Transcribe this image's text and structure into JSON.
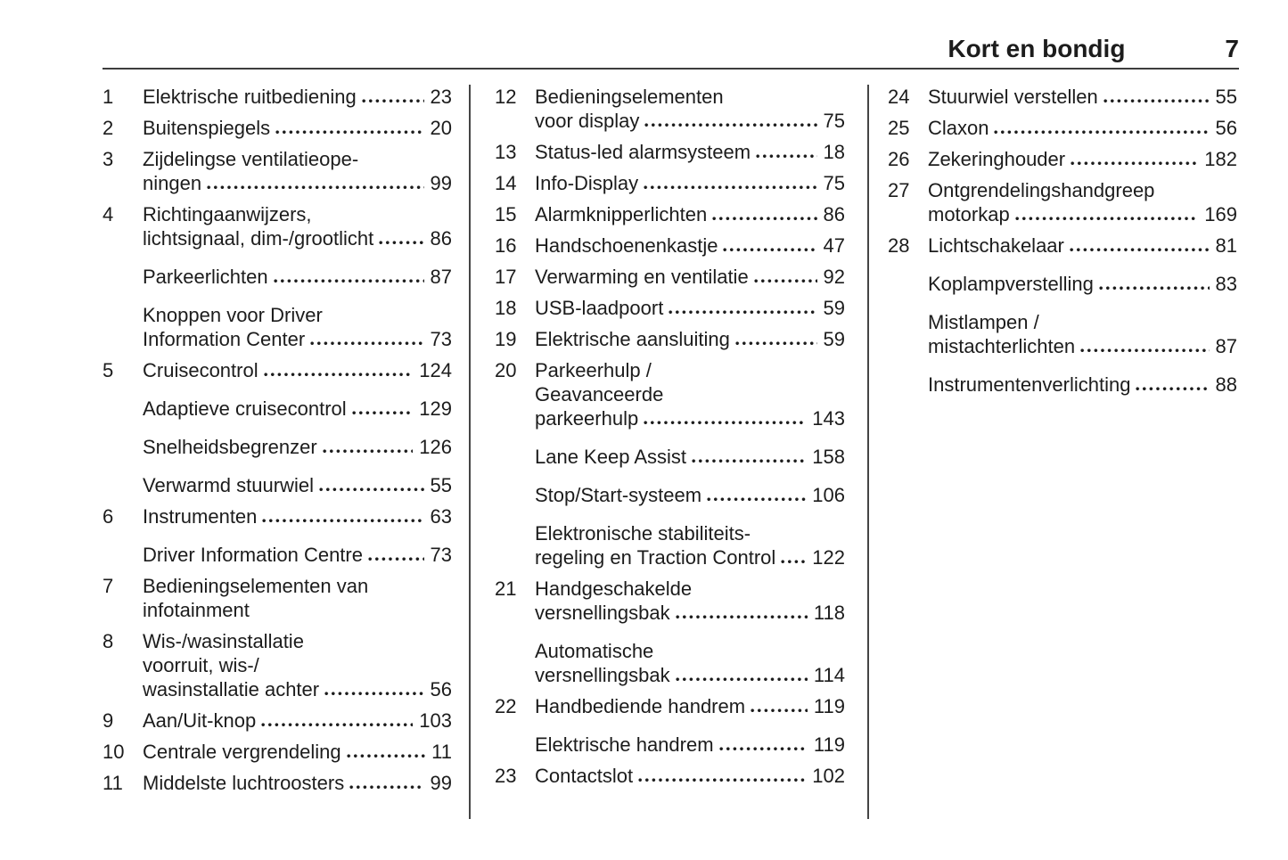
{
  "header": {
    "title": "Kort en bondig",
    "page_number": "7"
  },
  "colors": {
    "text": "#1c1c1c",
    "rule": "#3d3d3d"
  },
  "columns": [
    {
      "entries": [
        {
          "num": "1",
          "lines": [
            "Elektrische ruitbediening"
          ],
          "page": "23"
        },
        {
          "num": "2",
          "lines": [
            "Buitenspiegels"
          ],
          "page": "20"
        },
        {
          "num": "3",
          "lines": [
            "Zijdelingse ventilatieope-",
            "ningen"
          ],
          "page": "99"
        },
        {
          "num": "4",
          "lines": [
            "Richtingaanwijzers,",
            "lichtsignaal, dim-/grootlicht"
          ],
          "page": "86"
        },
        {
          "num": "",
          "lines": [
            "Parkeerlichten"
          ],
          "page": "87"
        },
        {
          "num": "",
          "lines": [
            "Knoppen voor Driver",
            "Information Center"
          ],
          "page": "73"
        },
        {
          "num": "5",
          "lines": [
            "Cruisecontrol"
          ],
          "page": "124"
        },
        {
          "num": "",
          "lines": [
            "Adaptieve cruisecontrol"
          ],
          "page": "129"
        },
        {
          "num": "",
          "lines": [
            "Snelheidsbegrenzer"
          ],
          "page": "126"
        },
        {
          "num": "",
          "lines": [
            "Verwarmd stuurwiel"
          ],
          "page": "55"
        },
        {
          "num": "6",
          "lines": [
            "Instrumenten"
          ],
          "page": "63"
        },
        {
          "num": "",
          "lines": [
            "Driver Information Centre"
          ],
          "page": "73"
        },
        {
          "num": "7",
          "lines": [
            "Bedieningselementen van",
            "infotainment"
          ],
          "page": null
        },
        {
          "num": "8",
          "lines": [
            "Wis-/wasinstallatie",
            "voorruit, wis-/",
            "wasinstallatie achter"
          ],
          "page": "56"
        },
        {
          "num": "9",
          "lines": [
            "Aan/Uit-knop"
          ],
          "page": "103"
        },
        {
          "num": "10",
          "lines": [
            "Centrale vergrendeling"
          ],
          "page": "11"
        },
        {
          "num": "11",
          "lines": [
            "Middelste luchtroosters"
          ],
          "page": "99"
        }
      ]
    },
    {
      "entries": [
        {
          "num": "12",
          "lines": [
            "Bedieningselementen",
            "voor display"
          ],
          "page": "75"
        },
        {
          "num": "13",
          "lines": [
            "Status-led alarmsysteem"
          ],
          "page": "18"
        },
        {
          "num": "14",
          "lines": [
            "Info-Display"
          ],
          "page": "75"
        },
        {
          "num": "15",
          "lines": [
            "Alarmknipperlichten"
          ],
          "page": "86"
        },
        {
          "num": "16",
          "lines": [
            "Handschoenenkastje"
          ],
          "page": "47"
        },
        {
          "num": "17",
          "lines": [
            "Verwarming en ventilatie"
          ],
          "page": "92"
        },
        {
          "num": "18",
          "lines": [
            "USB-laadpoort"
          ],
          "page": "59"
        },
        {
          "num": "19",
          "lines": [
            "Elektrische aansluiting"
          ],
          "page": "59"
        },
        {
          "num": "20",
          "lines": [
            "Parkeerhulp /",
            "Geavanceerde",
            "parkeerhulp"
          ],
          "page": "143"
        },
        {
          "num": "",
          "lines": [
            "Lane Keep Assist"
          ],
          "page": "158"
        },
        {
          "num": "",
          "lines": [
            "Stop/Start-systeem"
          ],
          "page": "106"
        },
        {
          "num": "",
          "lines": [
            "Elektronische stabiliteits-",
            "regeling en Traction Control"
          ],
          "page": "122"
        },
        {
          "num": "21",
          "lines": [
            "Handgeschakelde",
            "versnellingsbak"
          ],
          "page": "118"
        },
        {
          "num": "",
          "lines": [
            "Automatische",
            "versnellingsbak"
          ],
          "page": "114"
        },
        {
          "num": "22",
          "lines": [
            "Handbediende handrem"
          ],
          "page": "119"
        },
        {
          "num": "",
          "lines": [
            "Elektrische handrem"
          ],
          "page": "119"
        },
        {
          "num": "23",
          "lines": [
            "Contactslot"
          ],
          "page": "102"
        }
      ]
    },
    {
      "entries": [
        {
          "num": "24",
          "lines": [
            "Stuurwiel verstellen"
          ],
          "page": "55"
        },
        {
          "num": "25",
          "lines": [
            "Claxon"
          ],
          "page": "56"
        },
        {
          "num": "26",
          "lines": [
            "Zekeringhouder"
          ],
          "page": "182"
        },
        {
          "num": "27",
          "lines": [
            "Ontgrendelingshandgreep",
            "motorkap"
          ],
          "page": "169"
        },
        {
          "num": "28",
          "lines": [
            "Lichtschakelaar"
          ],
          "page": "81"
        },
        {
          "num": "",
          "lines": [
            "Koplampverstelling"
          ],
          "page": "83"
        },
        {
          "num": "",
          "lines": [
            "Mistlampen /",
            "mistachterlichten"
          ],
          "page": "87"
        },
        {
          "num": "",
          "lines": [
            "Instrumentenverlichting"
          ],
          "page": "88"
        }
      ]
    }
  ]
}
